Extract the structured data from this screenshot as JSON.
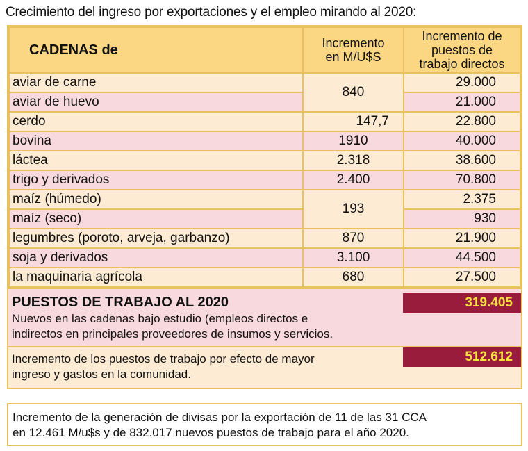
{
  "title": "Crecimiento del ingreso por exportaciones y el empleo mirando al 2020:",
  "headers": {
    "col1": "CADENAS de",
    "col2_line1": "Incremento",
    "col2_line2": "en M/U$S",
    "col3_line1": "Incremento de",
    "col3_line2": "puestos de",
    "col3_line3": "trabajo directos"
  },
  "rows": [
    {
      "cadena": "aviar de carne",
      "ingreso": "840",
      "puestos": "29.000"
    },
    {
      "cadena": "aviar de huevo",
      "puestos": "21.000"
    },
    {
      "cadena": "cerdo",
      "ingreso": "147,7",
      "puestos": "22.800"
    },
    {
      "cadena": "bovina",
      "ingreso": "1910",
      "puestos": "40.000"
    },
    {
      "cadena": "láctea",
      "ingreso": "2.318",
      "puestos": "38.600"
    },
    {
      "cadena": "trigo y derivados",
      "ingreso": "2.400",
      "puestos": "70.800"
    },
    {
      "cadena": "maíz (húmedo)",
      "ingreso": "193",
      "puestos": "2.375"
    },
    {
      "cadena": "maíz (seco)",
      "puestos": "930"
    },
    {
      "cadena": "legumbres (poroto, arveja, garbanzo)",
      "ingreso": "870",
      "puestos": "21.900"
    },
    {
      "cadena": "soja y derivados",
      "ingreso": "3.100",
      "puestos": "44.500"
    },
    {
      "cadena": "la maquinaria agrícola",
      "ingreso": "680",
      "puestos": "27.500"
    }
  ],
  "summary1": {
    "heading": "PUESTOS DE TRABAJO AL 2020",
    "line1": "Nuevos en las cadenas bajo estudio (empleos directos e",
    "line2": "indirectos en principales proveedores de insumos y servicios.",
    "value": "319.405"
  },
  "summary2": {
    "line1": "Incremento de los puestos de trabajo por efecto de mayor",
    "line2": "ingreso y gastos en la comunidad.",
    "value": "512.612"
  },
  "footer": {
    "line1": "Incremento de la generación de divisas por la exportación de 11 de las 31 CCA",
    "line2": "en 12.461 M/u$s y de 832.017 nuevos puestos de trabajo para el año 2020."
  },
  "colors": {
    "header": "#fbd783",
    "row_light": "#fdebd4",
    "row_pink": "#f8d9de",
    "highlight_box": "#9a1c3c",
    "highlight_text": "#f7e33c",
    "border": "#e8c25e"
  }
}
